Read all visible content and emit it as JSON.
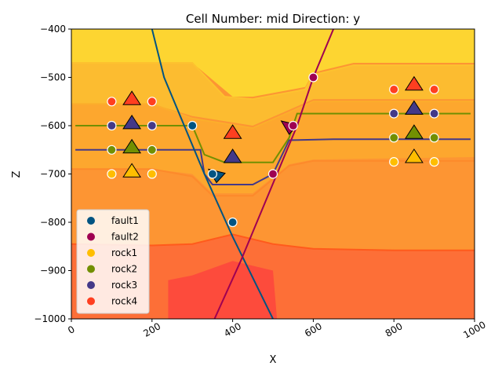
{
  "chart_data": {
    "type": "scatter",
    "title": "Cell Number: mid Direction: y",
    "xlabel": "X",
    "ylabel": "Z",
    "xlim": [
      0,
      1000
    ],
    "ylim": [
      -1000,
      -400
    ],
    "xticks": [
      0,
      200,
      400,
      600,
      800,
      1000
    ],
    "xtick_labels": [
      "0",
      "200",
      "400",
      "600",
      "800",
      "1000"
    ],
    "yticks": [
      -1000,
      -900,
      -800,
      -700,
      -600,
      -500,
      -400
    ],
    "ytick_labels": [
      "−1000",
      "−900",
      "−800",
      "−700",
      "−600",
      "−500",
      "−400"
    ],
    "grid": false,
    "legend_position": "lower-left",
    "series": [
      {
        "name": "fault1",
        "color": "#015482",
        "points": [
          [
            300,
            -600
          ],
          [
            350,
            -700
          ],
          [
            400,
            -800
          ]
        ]
      },
      {
        "name": "fault2",
        "color": "#9f0052",
        "points": [
          [
            500,
            -700
          ],
          [
            550,
            -600
          ],
          [
            600,
            -500
          ]
        ]
      },
      {
        "name": "rock1",
        "color": "#ffbe00",
        "points": [
          [
            100,
            -700
          ],
          [
            200,
            -700
          ],
          [
            800,
            -675
          ],
          [
            900,
            -675
          ]
        ]
      },
      {
        "name": "rock2",
        "color": "#728f02",
        "points": [
          [
            100,
            -650
          ],
          [
            200,
            -650
          ],
          [
            800,
            -625
          ],
          [
            900,
            -625
          ]
        ]
      },
      {
        "name": "rock3",
        "color": "#443988",
        "points": [
          [
            100,
            -600
          ],
          [
            200,
            -600
          ],
          [
            800,
            -575
          ],
          [
            900,
            -575
          ]
        ]
      },
      {
        "name": "rock4",
        "color": "#ff3f20",
        "points": [
          [
            100,
            -550
          ],
          [
            200,
            -550
          ],
          [
            800,
            -525
          ],
          [
            900,
            -525
          ]
        ]
      }
    ],
    "orientations": [
      {
        "series": "fault1",
        "x": 360,
        "z": -700,
        "dir": "down"
      },
      {
        "series": "fault2",
        "x": 540,
        "z": -600,
        "dir": "down"
      },
      {
        "series": "rock4",
        "x": 150,
        "z": -545,
        "dir": "up"
      },
      {
        "series": "rock3",
        "x": 150,
        "z": -595,
        "dir": "up"
      },
      {
        "series": "rock2",
        "x": 150,
        "z": -645,
        "dir": "up"
      },
      {
        "series": "rock1",
        "x": 150,
        "z": -695,
        "dir": "up"
      },
      {
        "series": "rock4",
        "x": 850,
        "z": -515,
        "dir": "up"
      },
      {
        "series": "rock3",
        "x": 850,
        "z": -565,
        "dir": "up"
      },
      {
        "series": "rock2",
        "x": 850,
        "z": -615,
        "dir": "up"
      },
      {
        "series": "rock1",
        "x": 850,
        "z": -665,
        "dir": "up"
      },
      {
        "series": "rock4",
        "x": 400,
        "z": -615,
        "dir": "up"
      },
      {
        "series": "rock3",
        "x": 400,
        "z": -665,
        "dir": "up"
      }
    ],
    "fault_lines": [
      {
        "series": "fault1",
        "points": [
          [
            200,
            -400
          ],
          [
            230,
            -500
          ],
          [
            280,
            -600
          ],
          [
            330,
            -700
          ],
          [
            400,
            -830
          ],
          [
            500,
            -1000
          ]
        ]
      },
      {
        "series": "fault2",
        "points": [
          [
            355,
            -1000
          ],
          [
            420,
            -880
          ],
          [
            510,
            -700
          ],
          [
            560,
            -600
          ],
          [
            600,
            -500
          ],
          [
            650,
            -400
          ]
        ]
      }
    ],
    "contact_lines": [
      {
        "series": "rock3",
        "points": [
          [
            10,
            -650
          ],
          [
            320,
            -650
          ],
          [
            330,
            -700
          ],
          [
            350,
            -722
          ],
          [
            450,
            -722
          ],
          [
            500,
            -700
          ],
          [
            540,
            -630
          ],
          [
            650,
            -628
          ],
          [
            990,
            -628
          ]
        ]
      },
      {
        "series": "rock2",
        "points": [
          [
            10,
            -600
          ],
          [
            300,
            -600
          ],
          [
            330,
            -660
          ],
          [
            380,
            -676
          ],
          [
            500,
            -676
          ],
          [
            540,
            -625
          ],
          [
            560,
            -575
          ],
          [
            990,
            -575
          ]
        ]
      }
    ],
    "background": {
      "layers": [
        {
          "color": "#fdd531",
          "points": [
            [
              0,
              -400
            ],
            [
              1000,
              -400
            ],
            [
              1000,
              -470
            ],
            [
              700,
              -470
            ],
            [
              600,
              -490
            ],
            [
              580,
              -520
            ],
            [
              450,
              -540
            ],
            [
              400,
              -540
            ],
            [
              300,
              -470
            ],
            [
              230,
              -470
            ],
            [
              0,
              -470
            ]
          ]
        },
        {
          "color": "#fcbc30",
          "points": [
            [
              0,
              -470
            ],
            [
              230,
              -470
            ],
            [
              300,
              -470
            ],
            [
              380,
              -540
            ],
            [
              450,
              -545
            ],
            [
              580,
              -525
            ],
            [
              600,
              -495
            ],
            [
              700,
              -475
            ],
            [
              1000,
              -475
            ],
            [
              1000,
              -545
            ],
            [
              600,
              -545
            ],
            [
              560,
              -560
            ],
            [
              450,
              -600
            ],
            [
              300,
              -580
            ],
            [
              200,
              -555
            ],
            [
              0,
              -555
            ]
          ]
        },
        {
          "color": "#fda72e",
          "points": [
            [
              0,
              -555
            ],
            [
              200,
              -555
            ],
            [
              300,
              -585
            ],
            [
              450,
              -605
            ],
            [
              560,
              -565
            ],
            [
              600,
              -550
            ],
            [
              1000,
              -550
            ],
            [
              1000,
              -665
            ],
            [
              600,
              -670
            ],
            [
              540,
              -680
            ],
            [
              450,
              -740
            ],
            [
              350,
              -740
            ],
            [
              300,
              -700
            ],
            [
              200,
              -690
            ],
            [
              0,
              -690
            ]
          ]
        },
        {
          "color": "#fd9533",
          "points": [
            [
              0,
              -690
            ],
            [
              200,
              -690
            ],
            [
              300,
              -705
            ],
            [
              350,
              -745
            ],
            [
              450,
              -745
            ],
            [
              540,
              -683
            ],
            [
              600,
              -673
            ],
            [
              1000,
              -673
            ],
            [
              1000,
              -855
            ],
            [
              800,
              -855
            ],
            [
              600,
              -850
            ],
            [
              500,
              -840
            ],
            [
              400,
              -820
            ],
            [
              300,
              -840
            ],
            [
              200,
              -845
            ],
            [
              0,
              -845
            ]
          ]
        },
        {
          "color": "#fd6f37",
          "points": [
            [
              0,
              -845
            ],
            [
              200,
              -848
            ],
            [
              300,
              -845
            ],
            [
              400,
              -825
            ],
            [
              500,
              -845
            ],
            [
              600,
              -855
            ],
            [
              800,
              -858
            ],
            [
              1000,
              -858
            ],
            [
              1000,
              -1000
            ],
            [
              0,
              -1000
            ]
          ]
        },
        {
          "color": "#fd4b3c",
          "points": [
            [
              240,
              -1000
            ],
            [
              240,
              -920
            ],
            [
              300,
              -910
            ],
            [
              400,
              -880
            ],
            [
              500,
              -900
            ],
            [
              510,
              -1000
            ]
          ]
        }
      ],
      "boundaries": [
        {
          "color": "#fdc22f",
          "points": [
            [
              0,
              -470
            ],
            [
              230,
              -470
            ],
            [
              300,
              -470
            ],
            [
              380,
              -540
            ],
            [
              450,
              -545
            ],
            [
              580,
              -525
            ],
            [
              600,
              -495
            ],
            [
              700,
              -475
            ],
            [
              1000,
              -475
            ]
          ]
        },
        {
          "color": "#fcae2b",
          "points": [
            [
              0,
              -555
            ],
            [
              200,
              -555
            ],
            [
              300,
              -585
            ],
            [
              450,
              -605
            ],
            [
              560,
              -565
            ],
            [
              600,
              -550
            ],
            [
              1000,
              -550
            ]
          ]
        },
        {
          "color": "#fd8a2b",
          "points": [
            [
              0,
              -690
            ],
            [
              200,
              -690
            ],
            [
              300,
              -705
            ],
            [
              350,
              -745
            ],
            [
              450,
              -745
            ],
            [
              540,
              -683
            ],
            [
              600,
              -673
            ],
            [
              1000,
              -673
            ]
          ]
        },
        {
          "color": "#ff5a1c",
          "points": [
            [
              0,
              -845
            ],
            [
              200,
              -848
            ],
            [
              300,
              -845
            ],
            [
              400,
              -825
            ],
            [
              500,
              -845
            ],
            [
              600,
              -855
            ],
            [
              800,
              -858
            ],
            [
              1000,
              -858
            ]
          ]
        }
      ]
    }
  }
}
